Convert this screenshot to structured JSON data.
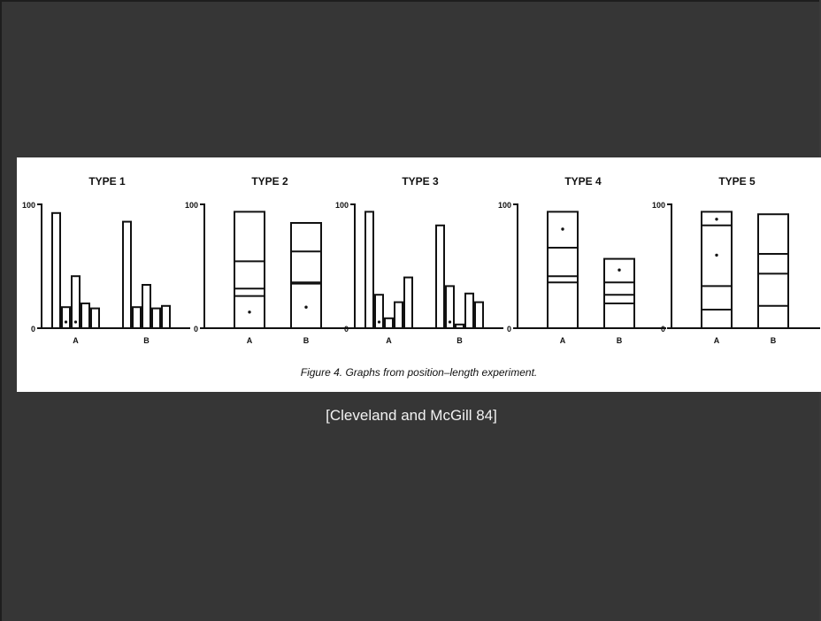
{
  "caption": "Figure 4. Graphs from position–length experiment.",
  "citation": "[Cleveland and McGill 84]",
  "chart_data": [
    {
      "type": "bar",
      "title": "TYPE 1",
      "y_ticks": [
        "0",
        "100"
      ],
      "ylim": [
        0,
        100
      ],
      "groups": [
        {
          "label": "A",
          "bars": [
            {
              "value": 93
            },
            {
              "value": 17,
              "dot": true
            },
            {
              "value": 42,
              "dot": true
            },
            {
              "value": 20
            },
            {
              "value": 16
            }
          ]
        },
        {
          "label": "B",
          "bars": [
            {
              "value": 86
            },
            {
              "value": 17
            },
            {
              "value": 35
            },
            {
              "value": 16
            },
            {
              "value": 18
            }
          ]
        }
      ]
    },
    {
      "type": "stacked_bar",
      "title": "TYPE 2",
      "y_ticks": [
        "0",
        "100"
      ],
      "ylim": [
        0,
        100
      ],
      "bars": [
        {
          "label": "A",
          "total": 94,
          "dividers": [
            26,
            32,
            54
          ],
          "dot_at": 13
        },
        {
          "label": "B",
          "total": 85,
          "dividers": [
            36,
            37,
            62
          ],
          "dot_at": 17
        }
      ]
    },
    {
      "type": "bar",
      "title": "TYPE 3",
      "y_ticks": [
        "0",
        "100"
      ],
      "ylim": [
        0,
        100
      ],
      "groups": [
        {
          "label": "A",
          "bars": [
            {
              "value": 94
            },
            {
              "value": 27,
              "dot": true
            },
            {
              "value": 8
            },
            {
              "value": 21
            },
            {
              "value": 41
            }
          ]
        },
        {
          "label": "B",
          "bars": [
            {
              "value": 83
            },
            {
              "value": 34,
              "dot": true
            },
            {
              "value": 3
            },
            {
              "value": 28
            },
            {
              "value": 21
            }
          ]
        }
      ]
    },
    {
      "type": "stacked_bar",
      "title": "TYPE 4",
      "y_ticks": [
        "0",
        "100"
      ],
      "ylim": [
        0,
        100
      ],
      "bars": [
        {
          "label": "A",
          "total": 94,
          "dividers": [
            37,
            42,
            65
          ],
          "dot_at": 80
        },
        {
          "label": "B",
          "total": 56,
          "dividers": [
            20,
            27,
            37
          ],
          "dot_at": 47
        }
      ]
    },
    {
      "type": "stacked_bar",
      "title": "TYPE 5",
      "y_ticks": [
        "0",
        "100"
      ],
      "ylim": [
        0,
        100
      ],
      "bars": [
        {
          "label": "A",
          "total": 94,
          "dividers": [
            15,
            34,
            83
          ],
          "dot_at": [
            88,
            59
          ]
        },
        {
          "label": "B",
          "total": 92,
          "dividers": [
            18,
            44,
            60
          ],
          "dot_at": null
        }
      ]
    }
  ]
}
